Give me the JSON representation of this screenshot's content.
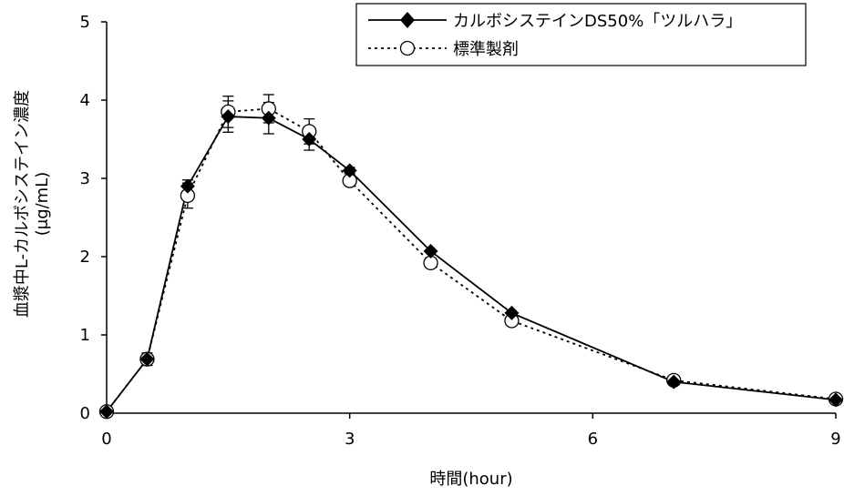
{
  "chart_data": {
    "type": "line",
    "title": "",
    "xlabel": "時間(hour)",
    "ylabel_line1": "血漿中L-カルボシステイン濃度",
    "ylabel_line2": "(μg/mL)",
    "xlim": [
      0,
      9
    ],
    "ylim": [
      0,
      5
    ],
    "xticks": [
      0,
      3,
      6,
      9
    ],
    "yticks": [
      0,
      1,
      2,
      3,
      4,
      5
    ],
    "grid": false,
    "legend_position": "top-right",
    "series": [
      {
        "name": "カルボシステインDS50%「ツルハラ」",
        "marker": "diamond-filled",
        "line_style": "solid",
        "color": "#000000",
        "x": [
          0,
          0.5,
          1,
          1.5,
          2,
          2.5,
          3,
          4,
          5,
          7,
          9
        ],
        "y": [
          0.02,
          0.69,
          2.9,
          3.79,
          3.77,
          3.5,
          3.1,
          2.07,
          1.28,
          0.4,
          0.17
        ],
        "error": [
          0,
          0.06,
          0.08,
          0.2,
          0.2,
          0.14,
          0.04,
          0,
          0,
          0,
          0
        ]
      },
      {
        "name": "標準製剤",
        "marker": "circle-open",
        "line_style": "dotted",
        "color": "#000000",
        "x": [
          0,
          0.5,
          1,
          1.5,
          2,
          2.5,
          3,
          4,
          5,
          7,
          9
        ],
        "y": [
          0.02,
          0.69,
          2.78,
          3.85,
          3.89,
          3.6,
          2.97,
          1.92,
          1.18,
          0.42,
          0.18
        ],
        "error": [
          0,
          0.08,
          0.16,
          0.2,
          0.18,
          0.16,
          0.04,
          0,
          0,
          0,
          0
        ]
      }
    ]
  }
}
